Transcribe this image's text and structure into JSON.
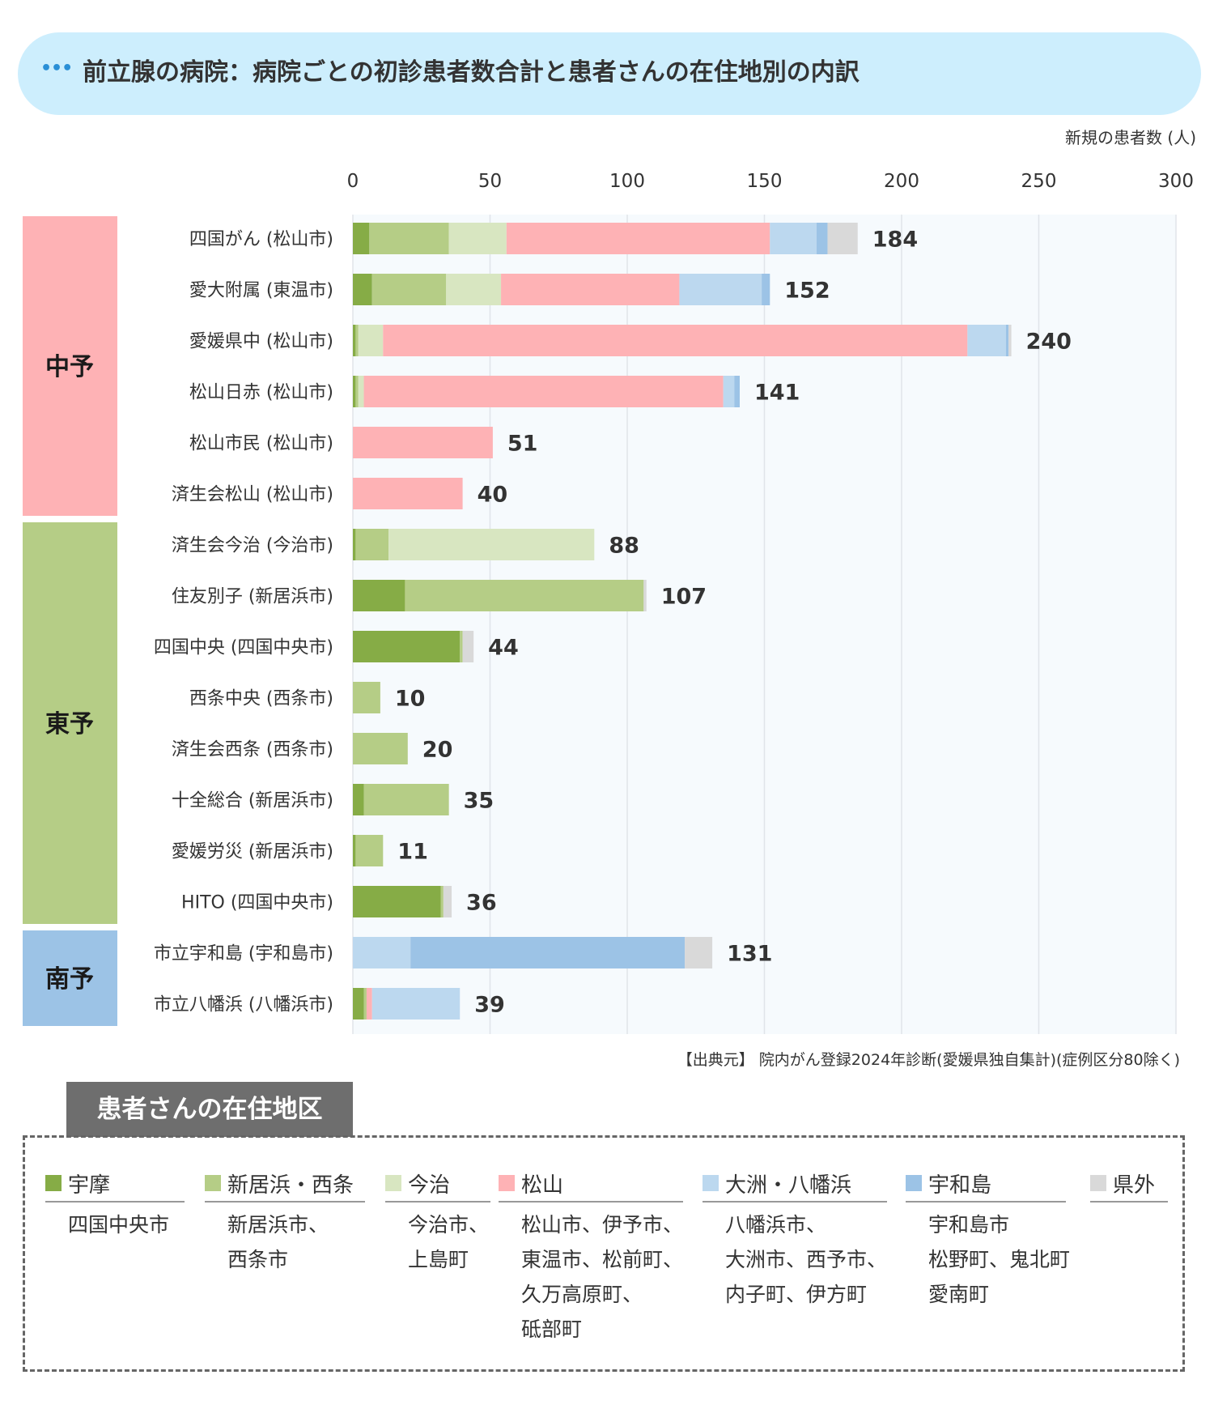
{
  "header": {
    "dots": "•••",
    "title": "前立腺の病院：病院ごとの初診患者数合計と患者さんの在住地別の内訳"
  },
  "unit_label": "新規の患者数 (人)",
  "source": "【出典元】 院内がん登録2024年診断(愛媛県独自集計)(症例区分80除く)",
  "colors": {
    "宇摩": "#86ac46",
    "新居浜・西条": "#b5cd86",
    "今治": "#d8e6c1",
    "松山": "#feb2b5",
    "大洲・八幡浜": "#bcd8ef",
    "宇和島": "#9cc3e6",
    "県外": "#d9d9d9"
  },
  "chart_data": {
    "type": "bar",
    "orientation": "horizontal",
    "stacked": true,
    "xlim": [
      0,
      300
    ],
    "xticks": [
      "0",
      "50",
      "100",
      "150",
      "200",
      "250",
      "300"
    ],
    "xlabel": "新規の患者数 (人)",
    "grid": true,
    "series_names": [
      "宇摩",
      "新居浜・西条",
      "今治",
      "松山",
      "大洲・八幡浜",
      "宇和島",
      "県外"
    ],
    "groups": [
      {
        "label": "中予",
        "color": "#feb2b5",
        "rows": [
          0,
          5
        ]
      },
      {
        "label": "東予",
        "color": "#b5cd86",
        "rows": [
          6,
          13
        ]
      },
      {
        "label": "南予",
        "color": "#9cc3e6",
        "rows": [
          14,
          15
        ]
      }
    ],
    "hospitals": [
      {
        "label": "四国がん (松山市)",
        "total": "184",
        "values": [
          6,
          29,
          21,
          96,
          17,
          4,
          11
        ]
      },
      {
        "label": "愛大附属 (東温市)",
        "total": "152",
        "values": [
          7,
          27,
          20,
          65,
          30,
          3,
          0
        ]
      },
      {
        "label": "愛媛県中 (松山市)",
        "total": "240",
        "values": [
          1,
          1,
          9,
          213,
          14,
          1,
          1
        ]
      },
      {
        "label": "松山日赤 (松山市)",
        "total": "141",
        "values": [
          1,
          1,
          2,
          131,
          4,
          2,
          0
        ]
      },
      {
        "label": "松山市民 (松山市)",
        "total": "51",
        "values": [
          0,
          0,
          0,
          51,
          0,
          0,
          0
        ]
      },
      {
        "label": "済生会松山 (松山市)",
        "total": "40",
        "values": [
          0,
          0,
          0,
          40,
          0,
          0,
          0
        ]
      },
      {
        "label": "済生会今治 (今治市)",
        "total": "88",
        "values": [
          1,
          12,
          75,
          0,
          0,
          0,
          0
        ]
      },
      {
        "label": "住友別子 (新居浜市)",
        "total": "107",
        "values": [
          19,
          87,
          0,
          0,
          0,
          0,
          1
        ]
      },
      {
        "label": "四国中央 (四国中央市)",
        "total": "44",
        "values": [
          39,
          1,
          0,
          0,
          0,
          0,
          4
        ]
      },
      {
        "label": "西条中央 (西条市)",
        "total": "10",
        "values": [
          0,
          10,
          0,
          0,
          0,
          0,
          0
        ]
      },
      {
        "label": "済生会西条 (西条市)",
        "total": "20",
        "values": [
          0,
          20,
          0,
          0,
          0,
          0,
          0
        ]
      },
      {
        "label": "十全総合 (新居浜市)",
        "total": "35",
        "values": [
          4,
          31,
          0,
          0,
          0,
          0,
          0
        ]
      },
      {
        "label": "愛媛労災 (新居浜市)",
        "total": "11",
        "values": [
          1,
          10,
          0,
          0,
          0,
          0,
          0
        ]
      },
      {
        "label": "HITO (四国中央市)",
        "total": "36",
        "values": [
          32,
          1,
          0,
          0,
          0,
          0,
          3
        ]
      },
      {
        "label": "市立宇和島 (宇和島市)",
        "total": "131",
        "values": [
          0,
          0,
          0,
          0,
          21,
          100,
          10
        ]
      },
      {
        "label": "市立八幡浜 (八幡浜市)",
        "total": "39",
        "values": [
          4,
          1,
          0,
          2,
          32,
          0,
          0
        ]
      }
    ]
  },
  "legend": {
    "title": "患者さんの在住地区",
    "items": [
      {
        "name": "宇摩",
        "lines": [
          "四国中央市"
        ]
      },
      {
        "name": "新居浜・西条",
        "lines": [
          "新居浜市、",
          "西条市"
        ]
      },
      {
        "name": "今治",
        "lines": [
          "今治市、",
          "上島町"
        ]
      },
      {
        "name": "松山",
        "lines": [
          "松山市、伊予市、",
          "東温市、松前町、",
          "久万高原町、",
          "砥部町"
        ]
      },
      {
        "name": "大洲・八幡浜",
        "lines": [
          "八幡浜市、",
          "大洲市、西予市、",
          "内子町、伊方町"
        ]
      },
      {
        "name": "宇和島",
        "lines": [
          "宇和島市",
          "松野町、鬼北町",
          "愛南町"
        ]
      },
      {
        "name": "県外",
        "lines": []
      }
    ]
  }
}
